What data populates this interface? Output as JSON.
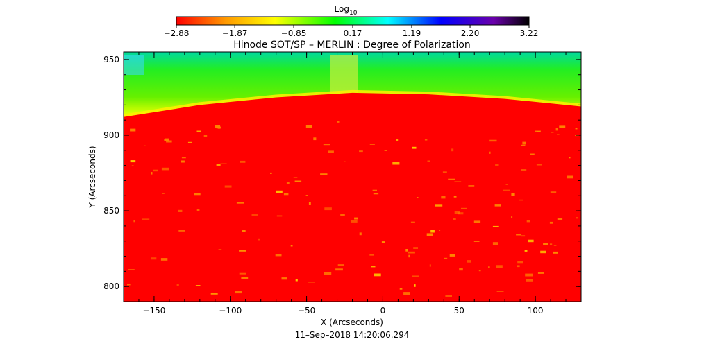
{
  "chart_data": {
    "type": "heatmap",
    "title": "Hinode SOT/SP – MERLIN : Degree of Polarization",
    "xlabel": "X (Arcseconds)",
    "ylabel": "Y (Arcseconds)",
    "timestamp": "11–Sep–2018 14:20:06.294",
    "xlim": [
      -170,
      130
    ],
    "ylim": [
      790,
      955
    ],
    "x_ticks": [
      -150,
      -100,
      -50,
      0,
      50,
      100
    ],
    "x_tick_labels": [
      "−150",
      "−100",
      "−50",
      "0",
      "50",
      "100"
    ],
    "y_ticks": [
      800,
      850,
      900,
      950
    ],
    "y_tick_labels": [
      "800",
      "850",
      "900",
      "950"
    ],
    "colorbar": {
      "label_base": "Log",
      "label_sub": "10",
      "min": -2.88,
      "max": 3.22,
      "ticks": [
        -2.88,
        -1.87,
        -0.85,
        0.17,
        1.19,
        2.2,
        3.22
      ],
      "tick_labels": [
        "−2.88",
        "−1.87",
        "−0.85",
        "0.17",
        "1.19",
        "2.20",
        "3.22"
      ],
      "colormap": [
        "#ff0000",
        "#ff9900",
        "#ffff00",
        "#00ff00",
        "#00ffff",
        "#0000ff",
        "#6a00aa",
        "#000000"
      ]
    },
    "limb": {
      "description": "solar limb boundary, disk below is low polarization (red), off-limb region above is higher (yellow-green to cyan)",
      "points_x": [
        -170,
        -120,
        -70,
        -20,
        30,
        80,
        130
      ],
      "points_y": [
        912,
        920,
        925,
        928,
        927,
        924,
        919
      ]
    },
    "colors": {
      "disk": "#ff0000",
      "limb_edge": "#ffff00",
      "off_limb": "#33ee00",
      "off_limb_top": "#00ddaa"
    }
  }
}
